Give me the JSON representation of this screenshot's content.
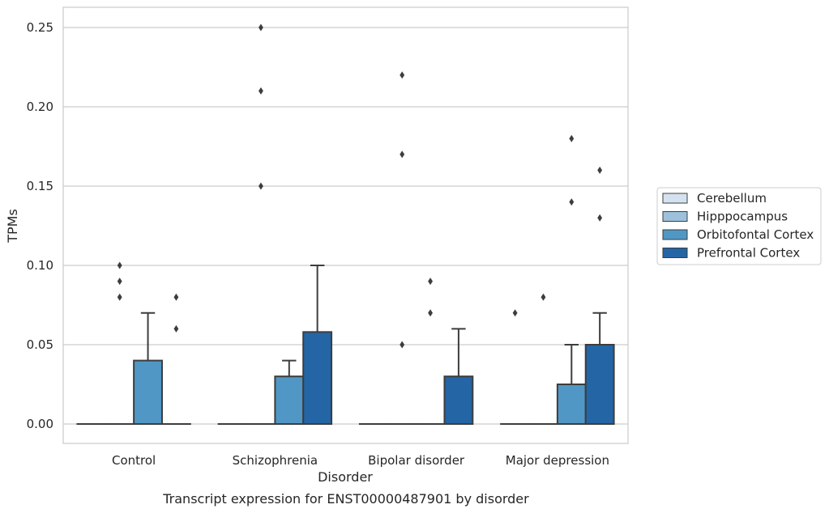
{
  "chart_data": {
    "type": "box",
    "title": "",
    "caption": "Transcript expression for ENST00000487901 by disorder",
    "xlabel": "Disorder",
    "ylabel": "TPMs",
    "ylim": [
      -0.012,
      0.263
    ],
    "yticks": [
      0.0,
      0.05,
      0.1,
      0.15,
      0.2,
      0.25
    ],
    "ytick_labels": [
      "0.00",
      "0.05",
      "0.10",
      "0.15",
      "0.20",
      "0.25"
    ],
    "grid": "horizontal",
    "legend_position": "right",
    "categories": [
      "Control",
      "Schizophrenia",
      "Bipolar disorder",
      "Major depression"
    ],
    "series": [
      {
        "name": "Cerebellum",
        "color": "#d4e2f0",
        "boxes": [
          {
            "min": 0,
            "q1": 0,
            "median": 0,
            "q3": 0,
            "max": 0,
            "outliers": []
          },
          {
            "min": 0,
            "q1": 0,
            "median": 0,
            "q3": 0,
            "max": 0,
            "outliers": []
          },
          {
            "min": 0,
            "q1": 0,
            "median": 0,
            "q3": 0,
            "max": 0,
            "outliers": []
          },
          {
            "min": 0,
            "q1": 0,
            "median": 0,
            "q3": 0,
            "max": 0,
            "outliers": [
              0.07
            ]
          }
        ]
      },
      {
        "name": "Hipppocampus",
        "color": "#9dc1dc",
        "boxes": [
          {
            "min": 0,
            "q1": 0,
            "median": 0,
            "q3": 0,
            "max": 0,
            "outliers": [
              0.08,
              0.09,
              0.1
            ]
          },
          {
            "min": 0,
            "q1": 0,
            "median": 0,
            "q3": 0,
            "max": 0,
            "outliers": [
              0.15,
              0.21,
              0.25
            ]
          },
          {
            "min": 0,
            "q1": 0,
            "median": 0,
            "q3": 0,
            "max": 0,
            "outliers": [
              0.05,
              0.17,
              0.22
            ]
          },
          {
            "min": 0,
            "q1": 0,
            "median": 0,
            "q3": 0,
            "max": 0,
            "outliers": [
              0.08
            ]
          }
        ]
      },
      {
        "name": "Orbitofontal Cortex",
        "color": "#5097c5",
        "boxes": [
          {
            "min": 0,
            "q1": 0,
            "median": 0,
            "q3": 0.04,
            "max": 0.07,
            "outliers": []
          },
          {
            "min": 0,
            "q1": 0,
            "median": 0,
            "q3": 0.03,
            "max": 0.04,
            "outliers": []
          },
          {
            "min": 0,
            "q1": 0,
            "median": 0,
            "q3": 0,
            "max": 0,
            "outliers": [
              0.07,
              0.09
            ]
          },
          {
            "min": 0,
            "q1": 0,
            "median": 0,
            "q3": 0.025,
            "max": 0.05,
            "outliers": [
              0.14,
              0.18
            ]
          }
        ]
      },
      {
        "name": "Prefrontal Cortex",
        "color": "#2365a5",
        "boxes": [
          {
            "min": 0,
            "q1": 0,
            "median": 0,
            "q3": 0,
            "max": 0,
            "outliers": [
              0.06,
              0.08
            ]
          },
          {
            "min": 0,
            "q1": 0,
            "median": 0,
            "q3": 0.058,
            "max": 0.1,
            "outliers": []
          },
          {
            "min": 0,
            "q1": 0,
            "median": 0,
            "q3": 0.03,
            "max": 0.06,
            "outliers": []
          },
          {
            "min": 0,
            "q1": 0,
            "median": 0,
            "q3": 0.05,
            "max": 0.07,
            "outliers": [
              0.13,
              0.16
            ]
          }
        ]
      }
    ]
  }
}
